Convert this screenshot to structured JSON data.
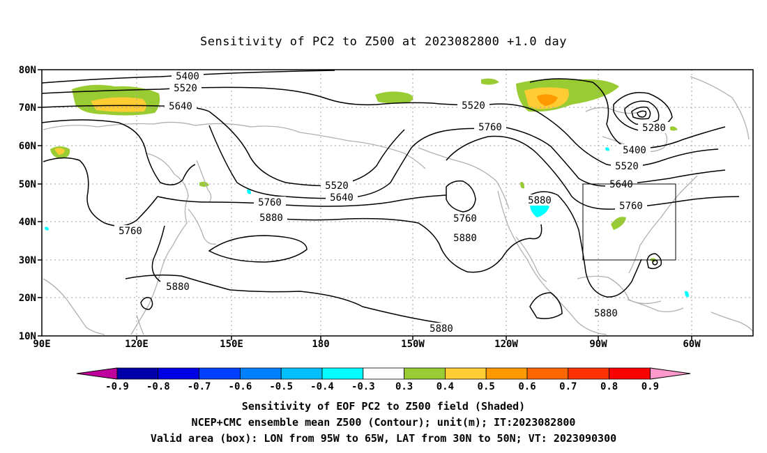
{
  "title": "Sensitivity of PC2 to Z500 at 2023082800 +1.0 day",
  "lat_labels": [
    "80N",
    "70N",
    "60N",
    "50N",
    "40N",
    "30N",
    "20N",
    "10N"
  ],
  "lon_labels": [
    "90E",
    "120E",
    "150E",
    "180",
    "150W",
    "120W",
    "90W",
    "60W"
  ],
  "contour_labels": [
    {
      "text": "5400"
    },
    {
      "text": "5520"
    },
    {
      "text": "5640"
    },
    {
      "text": "5520"
    },
    {
      "text": "5760"
    },
    {
      "text": "5280"
    },
    {
      "text": "5400"
    },
    {
      "text": "5520"
    },
    {
      "text": "5640"
    },
    {
      "text": "5520"
    },
    {
      "text": "5640"
    },
    {
      "text": "5760"
    },
    {
      "text": "5880"
    },
    {
      "text": "5760"
    },
    {
      "text": "5880"
    },
    {
      "text": "5760"
    },
    {
      "text": "5760"
    },
    {
      "text": "5880"
    },
    {
      "text": "5880"
    },
    {
      "text": "5880"
    },
    {
      "text": "5880"
    }
  ],
  "colorbar": {
    "labels": [
      "-0.9",
      "-0.8",
      "-0.7",
      "-0.6",
      "-0.5",
      "-0.4",
      "-0.3",
      "0.3",
      "0.4",
      "0.5",
      "0.6",
      "0.7",
      "0.8",
      "0.9"
    ],
    "colors": [
      "#c0009c",
      "#0000a8",
      "#0000e6",
      "#0040ff",
      "#0080ff",
      "#00c0ff",
      "#00ffff",
      "#ffffff",
      "#99cc33",
      "#ffcc33",
      "#ff9900",
      "#ff6600",
      "#ff3300",
      "#ff0000",
      "#ff99cc"
    ]
  },
  "footer": {
    "line1": "Sensitivity of EOF PC2 to Z500 field (Shaded)",
    "line2": "NCEP+CMC ensemble mean Z500 (Contour); unit(m); IT:2023082800",
    "line3": "Valid area (box): LON from 95W to 65W, LAT from 30N to 50N; VT: 2023090300"
  }
}
